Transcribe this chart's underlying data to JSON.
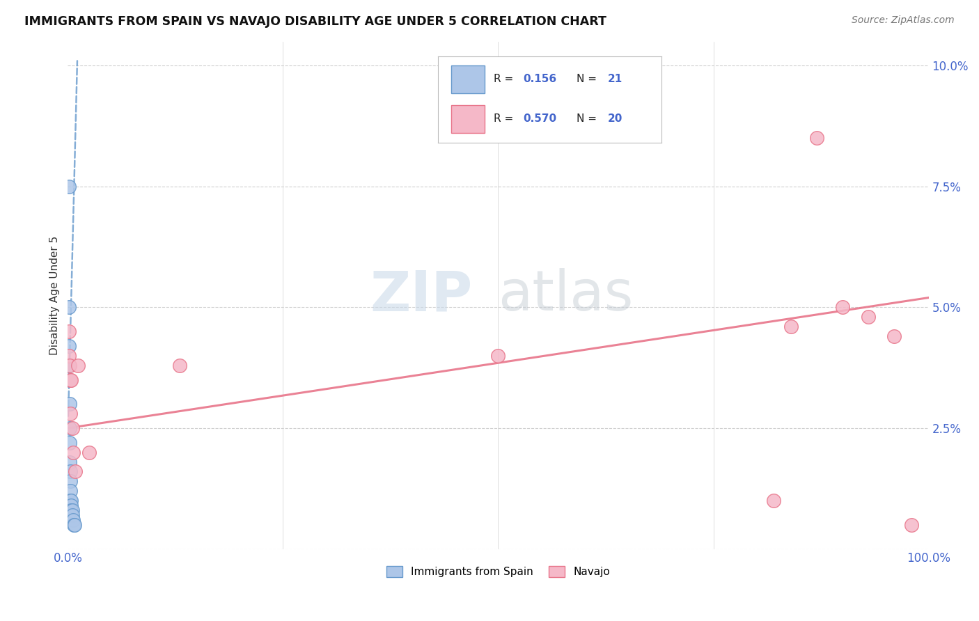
{
  "title": "IMMIGRANTS FROM SPAIN VS NAVAJO DISABILITY AGE UNDER 5 CORRELATION CHART",
  "source": "Source: ZipAtlas.com",
  "ylabel": "Disability Age Under 5",
  "legend_label1": "Immigrants from Spain",
  "legend_label2": "Navajo",
  "r1": "0.156",
  "n1": "21",
  "r2": "0.570",
  "n2": "20",
  "color_blue": "#adc6e8",
  "color_pink": "#f5b8c8",
  "line_blue": "#6699cc",
  "line_pink": "#e8758a",
  "blue_x": [
    0.001,
    0.001,
    0.001,
    0.001,
    0.002,
    0.002,
    0.002,
    0.002,
    0.002,
    0.003,
    0.003,
    0.003,
    0.003,
    0.004,
    0.004,
    0.004,
    0.005,
    0.005,
    0.006,
    0.007,
    0.008
  ],
  "blue_y": [
    0.075,
    0.05,
    0.042,
    0.038,
    0.035,
    0.03,
    0.025,
    0.022,
    0.018,
    0.016,
    0.014,
    0.012,
    0.01,
    0.01,
    0.009,
    0.008,
    0.008,
    0.007,
    0.006,
    0.005,
    0.005
  ],
  "pink_x": [
    0.001,
    0.001,
    0.002,
    0.003,
    0.003,
    0.004,
    0.005,
    0.006,
    0.009,
    0.012,
    0.025,
    0.13,
    0.5,
    0.82,
    0.84,
    0.87,
    0.9,
    0.93,
    0.96,
    0.98
  ],
  "pink_y": [
    0.045,
    0.04,
    0.038,
    0.035,
    0.028,
    0.035,
    0.025,
    0.02,
    0.016,
    0.038,
    0.02,
    0.038,
    0.04,
    0.01,
    0.046,
    0.085,
    0.05,
    0.048,
    0.044,
    0.005
  ],
  "blue_line_x": [
    0.001,
    0.008
  ],
  "blue_line_y_intercept": 0.024,
  "blue_line_slope": 7.0,
  "pink_line_x0": 0.0,
  "pink_line_y0": 0.025,
  "pink_line_x1": 1.0,
  "pink_line_y1": 0.052,
  "xmin": 0.0,
  "xmax": 1.0,
  "ymin": 0.0,
  "ymax": 0.105,
  "yticks": [
    0.0,
    0.025,
    0.05,
    0.075,
    0.1
  ],
  "ytick_labels": [
    "",
    "2.5%",
    "5.0%",
    "7.5%",
    "10.0%"
  ],
  "xticks": [
    0.0,
    0.25,
    0.5,
    0.75,
    1.0
  ],
  "xtick_labels": [
    "0.0%",
    "",
    "",
    "",
    "100.0%"
  ],
  "watermark1": "ZIP",
  "watermark2": "atlas",
  "background_color": "#ffffff",
  "grid_color": "#d0d0d0",
  "tick_color": "#4466cc"
}
